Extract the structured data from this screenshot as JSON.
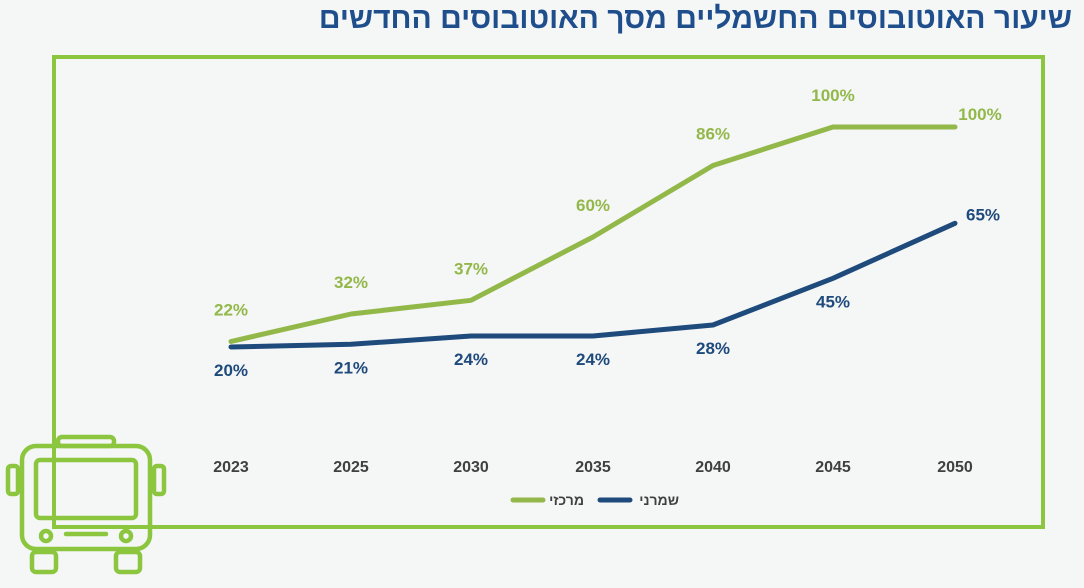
{
  "title": "שיעור האוטובוסים החשמליים מסך האוטובוסים החדשים",
  "colors": {
    "title": "#1f4e8c",
    "frame": "#8cc63f",
    "central": "#93b84a",
    "conservative": "#1e4a7c",
    "axis_text": "#404040",
    "background": "#f5f6f6"
  },
  "chart_data": {
    "type": "line",
    "categories": [
      "2023",
      "2025",
      "2030",
      "2035",
      "2040",
      "2045",
      "2050"
    ],
    "series": [
      {
        "name": "מרכזי",
        "values": [
          22,
          32,
          37,
          60,
          86,
          100,
          100
        ],
        "labels": [
          "22%",
          "32%",
          "37%",
          "60%",
          "86%",
          "100%",
          "100%"
        ],
        "color": "#93b84a"
      },
      {
        "name": "שמרני",
        "values": [
          20,
          21,
          24,
          24,
          28,
          45,
          65
        ],
        "labels": [
          "20%",
          "21%",
          "24%",
          "24%",
          "28%",
          "45%",
          "65%"
        ],
        "color": "#1e4a7c"
      }
    ],
    "grid": false,
    "legend_position": "bottom-center",
    "xlabel": "",
    "ylabel": ""
  },
  "icons": {
    "bus": "bus-icon"
  }
}
